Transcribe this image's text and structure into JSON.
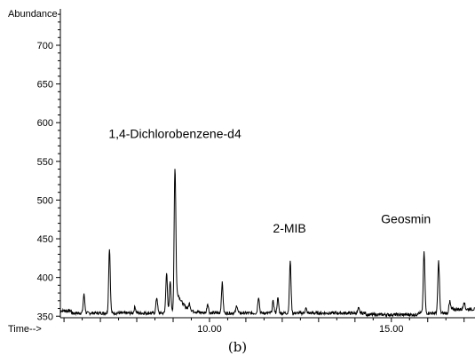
{
  "chart_data": {
    "type": "line",
    "ylabel": "Abundance",
    "xlabel": "Time-->",
    "xlim": [
      5.9,
      17.3
    ],
    "ylim": [
      348,
      747
    ],
    "x_ticks": [
      {
        "value": 10,
        "label": "10.00"
      },
      {
        "value": 15,
        "label": "15.00"
      }
    ],
    "y_ticks": [
      350,
      400,
      450,
      500,
      550,
      600,
      650,
      700
    ],
    "baseline": 354,
    "peaks": [
      {
        "x": 6.55,
        "y": 378
      },
      {
        "x": 7.25,
        "y": 438
      },
      {
        "x": 7.95,
        "y": 362
      },
      {
        "x": 8.55,
        "y": 374
      },
      {
        "x": 8.82,
        "y": 406
      },
      {
        "x": 8.92,
        "y": 396
      },
      {
        "x": 9.05,
        "y": 541
      },
      {
        "x": 9.45,
        "y": 362
      },
      {
        "x": 9.95,
        "y": 366
      },
      {
        "x": 10.35,
        "y": 393
      },
      {
        "x": 10.75,
        "y": 364
      },
      {
        "x": 11.35,
        "y": 375
      },
      {
        "x": 11.75,
        "y": 369
      },
      {
        "x": 11.88,
        "y": 373
      },
      {
        "x": 12.22,
        "y": 421
      },
      {
        "x": 12.65,
        "y": 360
      },
      {
        "x": 14.1,
        "y": 360
      },
      {
        "x": 15.9,
        "y": 432
      },
      {
        "x": 16.3,
        "y": 421
      },
      {
        "x": 16.6,
        "y": 366
      },
      {
        "x": 17.0,
        "y": 364
      }
    ],
    "annotations": [
      {
        "text": "1,4-Dichlorobenzene-d4",
        "x": 9.05,
        "y": 580
      },
      {
        "text": "2-MIB",
        "x": 12.2,
        "y": 458
      },
      {
        "text": "Geosmin",
        "x": 15.4,
        "y": 470
      }
    ]
  },
  "caption": "(b)"
}
